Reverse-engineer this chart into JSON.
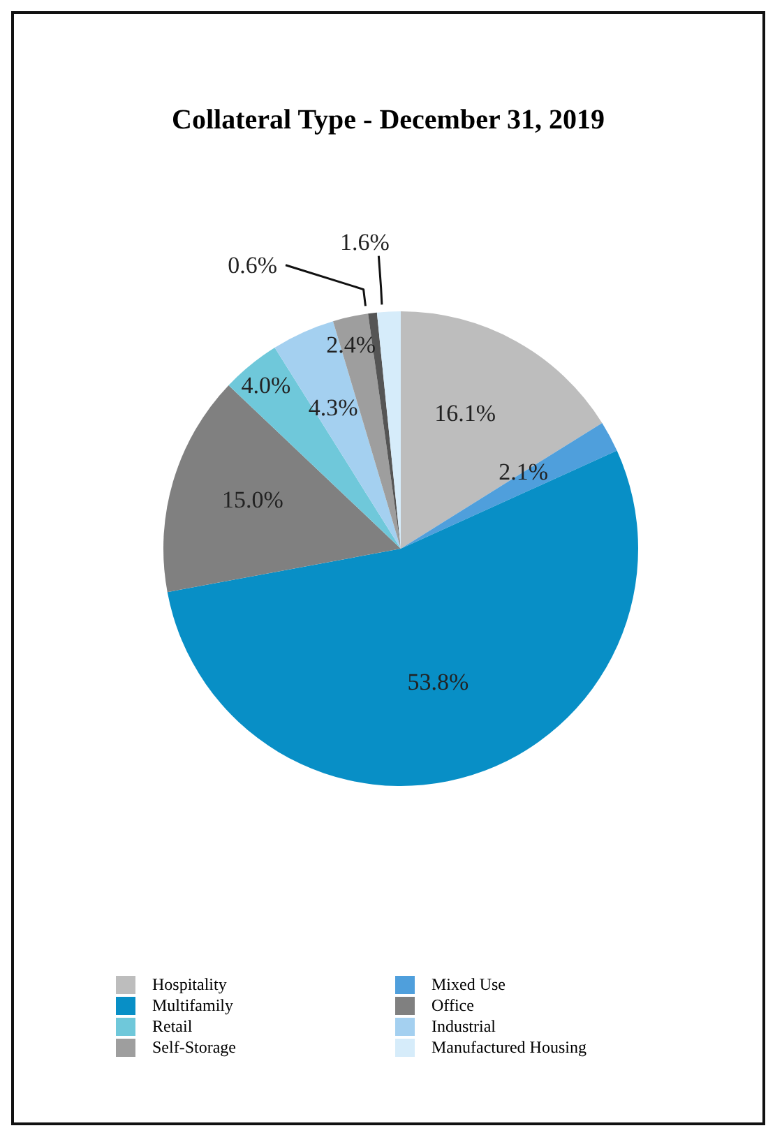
{
  "chart_data": {
    "type": "pie",
    "title": "Collateral Type - December 31, 2019",
    "categories": [
      "Hospitality",
      "Mixed Use",
      "Multifamily",
      "Office",
      "Retail",
      "Industrial",
      "Self-Storage",
      null,
      "Manufactured Housing"
    ],
    "values": [
      16.1,
      2.1,
      53.8,
      15.0,
      4.0,
      4.3,
      2.4,
      0.6,
      1.6
    ],
    "colors": [
      "#bdbdbd",
      "#4f9fdc",
      "#088fc6",
      "#808080",
      "#6fc8da",
      "#a4d0f0",
      "#9e9e9e",
      "#555555",
      "#d6ecfa"
    ],
    "value_labels": [
      "16.1%",
      "2.1%",
      "53.8%",
      "15.0%",
      "4.0%",
      "4.3%",
      "2.4%",
      "0.6%",
      "1.6%"
    ],
    "legend": "bottom"
  }
}
